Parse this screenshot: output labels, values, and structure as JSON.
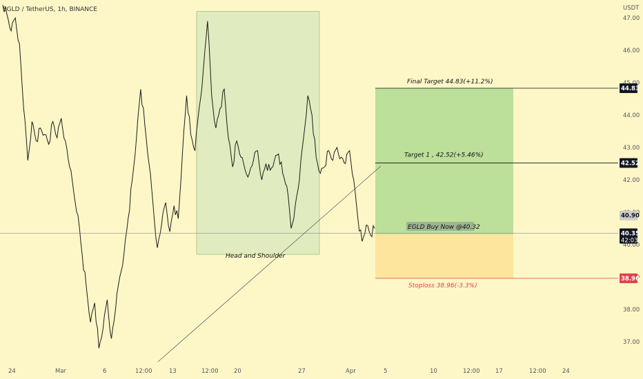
{
  "chart_data": {
    "type": "line",
    "title": "EGLD / TetherUS, 1h, BINANCE",
    "unit": "USDT",
    "ylim": [
      36.0,
      47.2
    ],
    "y_ticks": [
      "37.00",
      "38.00",
      "39.00",
      "40.00",
      "41.00",
      "42.00",
      "43.00",
      "44.00",
      "45.00",
      "46.00",
      "47.00"
    ],
    "x_ticks": [
      "24",
      "Mar",
      "6",
      "12:00",
      "13",
      "12:00",
      "20",
      "27",
      "Apr",
      "5",
      "10",
      "12:00",
      "17",
      "12:00",
      "24"
    ],
    "series": [
      {
        "values": [
          47.4,
          47.1,
          46.6,
          47.0,
          46.2,
          44.2,
          42.6,
          43.8,
          43.2,
          43.6,
          43.4,
          43.1,
          43.8,
          43.3,
          43.9,
          43.2,
          42.4,
          41.6,
          40.9,
          39.7,
          38.7,
          37.6,
          38.2,
          36.8,
          37.4,
          38.3,
          37.1,
          38.0,
          39.0,
          39.7,
          40.8,
          42.0,
          43.3,
          44.8,
          43.7,
          42.5,
          41.2,
          39.9,
          40.6,
          41.3,
          40.4,
          41.2,
          40.8,
          42.8,
          44.6,
          43.4,
          42.9,
          44.2,
          45.4,
          46.9,
          44.6,
          43.6,
          44.2,
          44.8,
          43.3,
          42.4,
          43.2,
          42.7,
          42.3,
          42.2,
          42.6,
          42.9,
          42.0,
          42.5,
          42.3,
          42.6,
          42.8,
          42.2,
          41.8,
          40.5,
          41.2,
          42.0,
          43.3,
          44.6,
          44.0,
          42.7,
          42.2,
          42.4,
          42.9,
          42.6,
          43.0,
          42.7,
          42.5,
          42.9,
          42.0,
          40.8,
          40.1,
          40.6,
          40.3,
          40.5
        ]
      }
    ],
    "last_price": "40.35",
    "countdown": "42:03",
    "price_label": "40.90",
    "annotations": {
      "final_target": "Final Target 44.83(+11.2%)",
      "target1": "Target 1 , 42.52(+5.46%)",
      "buy_now": "EGLD Buy Now @40.32",
      "stoploss": "Stoploss 38.96(-3.3%)",
      "pattern": "Head and Shoulder"
    },
    "levels": {
      "final_target": {
        "price": 44.83,
        "label": "44.83"
      },
      "target1": {
        "price": 42.52,
        "label": "42.52"
      },
      "entry": 40.32,
      "stoploss": {
        "price": 38.96,
        "label": "38.96"
      }
    },
    "pattern_box": {
      "y_range": [
        39.7,
        47.2
      ]
    },
    "colors": {
      "background": "#fdf7c8",
      "price_line": "#1a1a1a",
      "profit_zone": "#bcdf9a",
      "loss_zone": "#fde59d",
      "pattern_box": "#e0ecbf",
      "stoploss": "#e0414b",
      "tag_dark": "#131722"
    }
  }
}
